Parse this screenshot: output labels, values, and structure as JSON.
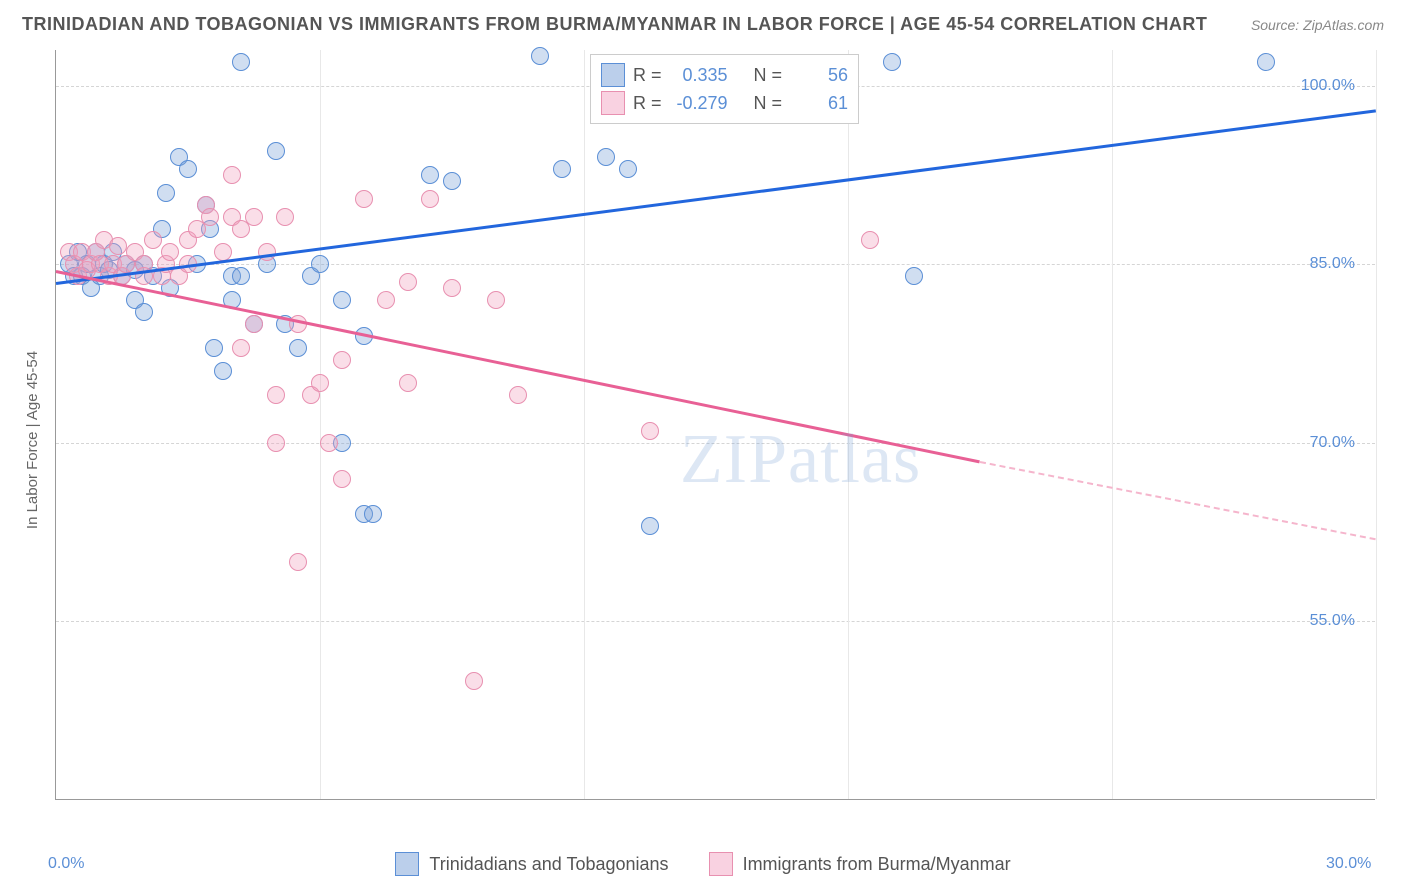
{
  "title": "TRINIDADIAN AND TOBAGONIAN VS IMMIGRANTS FROM BURMA/MYANMAR IN LABOR FORCE | AGE 45-54 CORRELATION CHART",
  "source": "Source: ZipAtlas.com",
  "watermark": "ZIPatlas",
  "ylabel": "In Labor Force | Age 45-54",
  "chart": {
    "type": "scatter",
    "xlim": [
      0,
      30
    ],
    "ylim": [
      40,
      103
    ],
    "ytick_values": [
      55.0,
      70.0,
      85.0,
      100.0
    ],
    "ytick_labels": [
      "55.0%",
      "70.0%",
      "85.0%",
      "100.0%"
    ],
    "xtick_values": [
      0,
      30
    ],
    "xtick_labels": [
      "0.0%",
      "30.0%"
    ],
    "xgrid_values": [
      6,
      12,
      18,
      24,
      30
    ],
    "grid_color": "#d5d5d5",
    "background_color": "#ffffff",
    "marker_radius": 9,
    "series": [
      {
        "name": "Trinidadians and Tobagonians",
        "color_fill": "rgba(120,160,215,0.35)",
        "color_stroke": "#5b8fd6",
        "trend_color": "#2266dd",
        "R": "0.335",
        "N": "56",
        "trend": {
          "x1": 0.0,
          "y1": 83.5,
          "x2": 30.0,
          "y2": 98.0
        },
        "points": [
          [
            0.3,
            85
          ],
          [
            0.4,
            84
          ],
          [
            0.5,
            86
          ],
          [
            0.6,
            84
          ],
          [
            0.7,
            85
          ],
          [
            0.8,
            83
          ],
          [
            0.9,
            86
          ],
          [
            1.0,
            84
          ],
          [
            1.1,
            85
          ],
          [
            1.2,
            84.5
          ],
          [
            1.3,
            86
          ],
          [
            1.5,
            84
          ],
          [
            1.6,
            85
          ],
          [
            1.8,
            84.5
          ],
          [
            1.8,
            82
          ],
          [
            2.0,
            85
          ],
          [
            2.0,
            81
          ],
          [
            2.2,
            84
          ],
          [
            2.4,
            88
          ],
          [
            2.5,
            91
          ],
          [
            2.6,
            83
          ],
          [
            2.8,
            94
          ],
          [
            3.0,
            93
          ],
          [
            3.2,
            85
          ],
          [
            3.4,
            90
          ],
          [
            3.5,
            88
          ],
          [
            3.6,
            78
          ],
          [
            3.8,
            76
          ],
          [
            4.0,
            84
          ],
          [
            4.0,
            82
          ],
          [
            4.2,
            84
          ],
          [
            4.2,
            102
          ],
          [
            4.5,
            80
          ],
          [
            4.8,
            85
          ],
          [
            5.0,
            94.5
          ],
          [
            5.2,
            80
          ],
          [
            5.5,
            78
          ],
          [
            5.8,
            84
          ],
          [
            6.0,
            85
          ],
          [
            6.5,
            82
          ],
          [
            6.5,
            70
          ],
          [
            7.0,
            79
          ],
          [
            7.0,
            64
          ],
          [
            7.2,
            64
          ],
          [
            8.5,
            92.5
          ],
          [
            9.0,
            92
          ],
          [
            11.0,
            102.5
          ],
          [
            11.5,
            93
          ],
          [
            12.5,
            94
          ],
          [
            13.0,
            93
          ],
          [
            13.5,
            63
          ],
          [
            19.0,
            102
          ],
          [
            19.5,
            84
          ],
          [
            27.5,
            102
          ]
        ]
      },
      {
        "name": "Immigrants from Burma/Myanmar",
        "color_fill": "rgba(240,160,190,0.35)",
        "color_stroke": "#e890b0",
        "trend_color": "#e86095",
        "R": "-0.279",
        "N": "61",
        "trend_solid": {
          "x1": 0.0,
          "y1": 84.5,
          "x2": 21.0,
          "y2": 68.5
        },
        "trend_dashed": {
          "x1": 21.0,
          "y1": 68.5,
          "x2": 30.0,
          "y2": 62.0
        },
        "points": [
          [
            0.3,
            86
          ],
          [
            0.4,
            85
          ],
          [
            0.5,
            84
          ],
          [
            0.6,
            86
          ],
          [
            0.7,
            84.5
          ],
          [
            0.8,
            85
          ],
          [
            0.9,
            86
          ],
          [
            1.0,
            85
          ],
          [
            1.1,
            87
          ],
          [
            1.2,
            84
          ],
          [
            1.3,
            85
          ],
          [
            1.4,
            86.5
          ],
          [
            1.5,
            84
          ],
          [
            1.6,
            85
          ],
          [
            1.8,
            86
          ],
          [
            2.0,
            85
          ],
          [
            2.0,
            84
          ],
          [
            2.2,
            87
          ],
          [
            2.4,
            84
          ],
          [
            2.5,
            85
          ],
          [
            2.6,
            86
          ],
          [
            2.8,
            84
          ],
          [
            3.0,
            87
          ],
          [
            3.0,
            85
          ],
          [
            3.2,
            88
          ],
          [
            3.4,
            90
          ],
          [
            3.5,
            89
          ],
          [
            3.8,
            86
          ],
          [
            4.0,
            92.5
          ],
          [
            4.0,
            89
          ],
          [
            4.2,
            88
          ],
          [
            4.2,
            78
          ],
          [
            4.5,
            89
          ],
          [
            4.5,
            80
          ],
          [
            4.8,
            86
          ],
          [
            5.0,
            70
          ],
          [
            5.0,
            74
          ],
          [
            5.2,
            89
          ],
          [
            5.5,
            80
          ],
          [
            5.5,
            60
          ],
          [
            5.8,
            74
          ],
          [
            6.0,
            75
          ],
          [
            6.2,
            70
          ],
          [
            6.5,
            77
          ],
          [
            6.5,
            67
          ],
          [
            7.0,
            90.5
          ],
          [
            7.5,
            82
          ],
          [
            8.0,
            83.5
          ],
          [
            8.0,
            75
          ],
          [
            8.5,
            90.5
          ],
          [
            9.0,
            83
          ],
          [
            9.5,
            50
          ],
          [
            10.0,
            82
          ],
          [
            10.5,
            74
          ],
          [
            13.5,
            71
          ],
          [
            18.5,
            87
          ]
        ]
      }
    ]
  },
  "legend": {
    "series1": "Trinidadians and Tobagonians",
    "series2": "Immigrants from Burma/Myanmar"
  },
  "stats": {
    "rLabel": "R =",
    "nLabel": "N ="
  }
}
